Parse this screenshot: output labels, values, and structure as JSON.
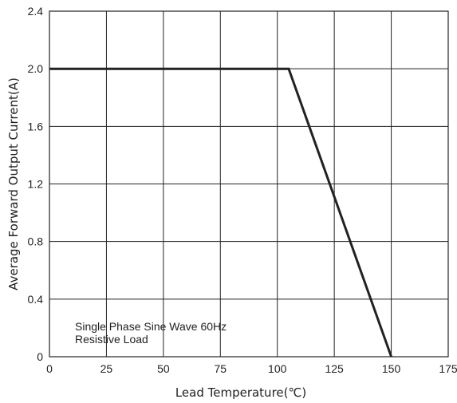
{
  "chart_data": {
    "type": "line",
    "xlabel": "Lead Temperature(℃)",
    "ylabel": "Average Forward Output Current(A)",
    "xlim": [
      0,
      175
    ],
    "ylim": [
      0,
      2.4
    ],
    "x_ticks": [
      0,
      25,
      50,
      75,
      100,
      125,
      150,
      175
    ],
    "x_tick_labels": [
      "0",
      "25",
      "50",
      "75",
      "100",
      "125",
      "150",
      "175"
    ],
    "y_ticks": [
      0,
      0.4,
      0.8,
      1.2,
      1.6,
      2.0,
      2.4
    ],
    "y_tick_labels": [
      "0",
      "0.4",
      "0.8",
      "1.2",
      "1.6",
      "2.0",
      "2.4"
    ],
    "grid": true,
    "annotations": [
      "Single Phase  Sine Wave 60Hz",
      "Resistive Load"
    ],
    "series": [
      {
        "x": [
          0,
          105,
          150
        ],
        "y": [
          2.0,
          2.0,
          0
        ]
      }
    ]
  }
}
